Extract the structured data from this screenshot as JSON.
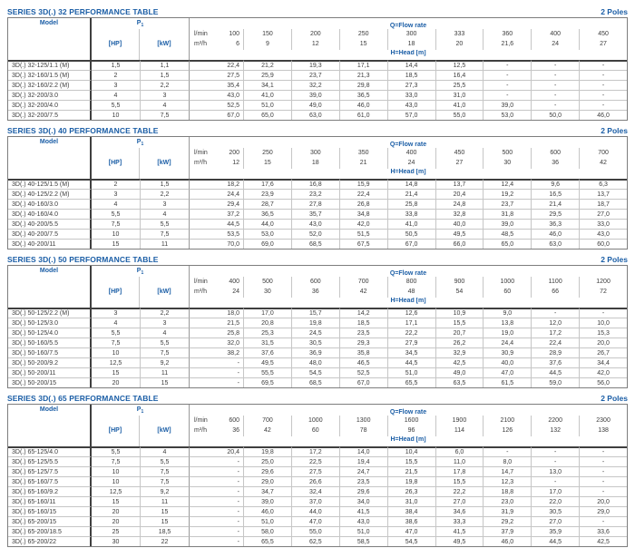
{
  "accent_color": "#1b5ea6",
  "text_color": "#3c3c3c",
  "labels": {
    "poles": "2 Poles",
    "model": "Model",
    "power_p": "P",
    "power_sub": "1",
    "hp": "[HP]",
    "kw": "[kW]",
    "lmin": "l/min",
    "m3h": "m³/h",
    "flow": "Q=Flow rate",
    "head": "H=Head [m]"
  },
  "tables": [
    {
      "title": "SERIES 3D(.) 32 PERFORMANCE TABLE",
      "lmin": [
        "100",
        "150",
        "200",
        "250",
        "300",
        "333",
        "360",
        "400",
        "450"
      ],
      "m3h": [
        "6",
        "9",
        "12",
        "15",
        "18",
        "20",
        "21,6",
        "24",
        "27"
      ],
      "rows": [
        {
          "model": "3D(.) 32-125/1.1 (M)",
          "hp": "1,5",
          "kw": "1,1",
          "head": [
            "22,4",
            "21,2",
            "19,3",
            "17,1",
            "14,4",
            "12,5",
            "-",
            "-",
            "-"
          ]
        },
        {
          "model": "3D(.) 32-160/1.5 (M)",
          "hp": "2",
          "kw": "1,5",
          "head": [
            "27,5",
            "25,9",
            "23,7",
            "21,3",
            "18,5",
            "16,4",
            "-",
            "-",
            "-"
          ]
        },
        {
          "model": "3D(.) 32-160/2.2 (M)",
          "hp": "3",
          "kw": "2,2",
          "head": [
            "35,4",
            "34,1",
            "32,2",
            "29,8",
            "27,3",
            "25,5",
            "-",
            "-",
            "-"
          ]
        },
        {
          "model": "3D(.) 32-200/3.0",
          "hp": "4",
          "kw": "3",
          "head": [
            "43,0",
            "41,0",
            "39,0",
            "36,5",
            "33,0",
            "31,0",
            "-",
            "-",
            "-"
          ]
        },
        {
          "model": "3D(.) 32-200/4.0",
          "hp": "5,5",
          "kw": "4",
          "head": [
            "52,5",
            "51,0",
            "49,0",
            "46,0",
            "43,0",
            "41,0",
            "39,0",
            "-",
            "-"
          ]
        },
        {
          "model": "3D(.) 32-200/7.5",
          "hp": "10",
          "kw": "7,5",
          "head": [
            "67,0",
            "65,0",
            "63,0",
            "61,0",
            "57,0",
            "55,0",
            "53,0",
            "50,0",
            "46,0"
          ]
        }
      ]
    },
    {
      "title": "SERIES 3D(.) 40 PERFORMANCE TABLE",
      "lmin": [
        "200",
        "250",
        "300",
        "350",
        "400",
        "450",
        "500",
        "600",
        "700"
      ],
      "m3h": [
        "12",
        "15",
        "18",
        "21",
        "24",
        "27",
        "30",
        "36",
        "42"
      ],
      "rows": [
        {
          "model": "3D(.) 40-125/1.5 (M)",
          "hp": "2",
          "kw": "1,5",
          "head": [
            "18,2",
            "17,6",
            "16,8",
            "15,9",
            "14,8",
            "13,7",
            "12,4",
            "9,6",
            "6,3"
          ]
        },
        {
          "model": "3D(.) 40-125/2.2 (M)",
          "hp": "3",
          "kw": "2,2",
          "head": [
            "24,4",
            "23,9",
            "23,2",
            "22,4",
            "21,4",
            "20,4",
            "19,2",
            "16,5",
            "13,7"
          ]
        },
        {
          "model": "3D(.) 40-160/3.0",
          "hp": "4",
          "kw": "3",
          "head": [
            "29,4",
            "28,7",
            "27,8",
            "26,8",
            "25,8",
            "24,8",
            "23,7",
            "21,4",
            "18,7"
          ]
        },
        {
          "model": "3D(.) 40-160/4.0",
          "hp": "5,5",
          "kw": "4",
          "head": [
            "37,2",
            "36,5",
            "35,7",
            "34,8",
            "33,8",
            "32,8",
            "31,8",
            "29,5",
            "27,0"
          ]
        },
        {
          "model": "3D(.) 40-200/5.5",
          "hp": "7,5",
          "kw": "5,5",
          "head": [
            "44,5",
            "44,0",
            "43,0",
            "42,0",
            "41,0",
            "40,0",
            "39,0",
            "36,3",
            "33,0"
          ]
        },
        {
          "model": "3D(.) 40-200/7.5",
          "hp": "10",
          "kw": "7,5",
          "head": [
            "53,5",
            "53,0",
            "52,0",
            "51,5",
            "50,5",
            "49,5",
            "48,5",
            "46,0",
            "43,0"
          ]
        },
        {
          "model": "3D(.) 40-200/11",
          "hp": "15",
          "kw": "11",
          "head": [
            "70,0",
            "69,0",
            "68,5",
            "67,5",
            "67,0",
            "66,0",
            "65,0",
            "63,0",
            "60,0"
          ]
        }
      ]
    },
    {
      "title": "SERIES 3D(.) 50 PERFORMANCE TABLE",
      "lmin": [
        "400",
        "500",
        "600",
        "700",
        "800",
        "900",
        "1000",
        "1100",
        "1200"
      ],
      "m3h": [
        "24",
        "30",
        "36",
        "42",
        "48",
        "54",
        "60",
        "66",
        "72"
      ],
      "rows": [
        {
          "model": "3D(.) 50-125/2.2 (M)",
          "hp": "3",
          "kw": "2,2",
          "head": [
            "18,0",
            "17,0",
            "15,7",
            "14,2",
            "12,6",
            "10,9",
            "9,0",
            "-",
            "-"
          ]
        },
        {
          "model": "3D(.) 50-125/3.0",
          "hp": "4",
          "kw": "3",
          "head": [
            "21,5",
            "20,8",
            "19,8",
            "18,5",
            "17,1",
            "15,5",
            "13,8",
            "12,0",
            "10,0"
          ]
        },
        {
          "model": "3D(.) 50-125/4.0",
          "hp": "5,5",
          "kw": "4",
          "head": [
            "25,8",
            "25,3",
            "24,5",
            "23,5",
            "22,2",
            "20,7",
            "19,0",
            "17,2",
            "15,3"
          ]
        },
        {
          "model": "3D(.) 50-160/5.5",
          "hp": "7,5",
          "kw": "5,5",
          "head": [
            "32,0",
            "31,5",
            "30,5",
            "29,3",
            "27,9",
            "26,2",
            "24,4",
            "22,4",
            "20,0"
          ]
        },
        {
          "model": "3D(.) 50-160/7.5",
          "hp": "10",
          "kw": "7,5",
          "head": [
            "38,2",
            "37,6",
            "36,9",
            "35,8",
            "34,5",
            "32,9",
            "30,9",
            "28,9",
            "26,7"
          ]
        },
        {
          "model": "3D(.) 50-200/9.2",
          "hp": "12,5",
          "kw": "9,2",
          "head": [
            "-",
            "49,5",
            "48,0",
            "46,5",
            "44,5",
            "42,5",
            "40,0",
            "37,6",
            "34,4"
          ]
        },
        {
          "model": "3D(.) 50-200/11",
          "hp": "15",
          "kw": "11",
          "head": [
            "-",
            "55,5",
            "54,5",
            "52,5",
            "51,0",
            "49,0",
            "47,0",
            "44,5",
            "42,0"
          ]
        },
        {
          "model": "3D(.) 50-200/15",
          "hp": "20",
          "kw": "15",
          "head": [
            "-",
            "69,5",
            "68,5",
            "67,0",
            "65,5",
            "63,5",
            "61,5",
            "59,0",
            "56,0"
          ]
        }
      ]
    },
    {
      "title": "SERIES 3D(.) 65 PERFORMANCE TABLE",
      "lmin": [
        "600",
        "700",
        "1000",
        "1300",
        "1600",
        "1900",
        "2100",
        "2200",
        "2300"
      ],
      "m3h": [
        "36",
        "42",
        "60",
        "78",
        "96",
        "114",
        "126",
        "132",
        "138"
      ],
      "rows": [
        {
          "model": "3D(.) 65-125/4.0",
          "hp": "5,5",
          "kw": "4",
          "head": [
            "20,4",
            "19,8",
            "17,2",
            "14,0",
            "10,4",
            "6,0",
            "-",
            "-",
            "-"
          ]
        },
        {
          "model": "3D(.) 65-125/5.5",
          "hp": "7,5",
          "kw": "5,5",
          "head": [
            "-",
            "25,0",
            "22,5",
            "19,4",
            "15,5",
            "11,0",
            "8,0",
            "-",
            "-"
          ]
        },
        {
          "model": "3D(.) 65-125/7.5",
          "hp": "10",
          "kw": "7,5",
          "head": [
            "-",
            "29,6",
            "27,5",
            "24,7",
            "21,5",
            "17,8",
            "14,7",
            "13,0",
            "-"
          ]
        },
        {
          "model": "3D(.) 65-160/7.5",
          "hp": "10",
          "kw": "7,5",
          "head": [
            "-",
            "29,0",
            "26,6",
            "23,5",
            "19,8",
            "15,5",
            "12,3",
            "-",
            "-"
          ]
        },
        {
          "model": "3D(.) 65-160/9.2",
          "hp": "12,5",
          "kw": "9,2",
          "head": [
            "-",
            "34,7",
            "32,4",
            "29,6",
            "26,3",
            "22,2",
            "18,8",
            "17,0",
            "-"
          ]
        },
        {
          "model": "3D(.) 65-160/11",
          "hp": "15",
          "kw": "11",
          "head": [
            "-",
            "39,0",
            "37,0",
            "34,0",
            "31,0",
            "27,0",
            "23,0",
            "22,0",
            "20,0"
          ]
        },
        {
          "model": "3D(.) 65-160/15",
          "hp": "20",
          "kw": "15",
          "head": [
            "-",
            "46,0",
            "44,0",
            "41,5",
            "38,4",
            "34,6",
            "31,9",
            "30,5",
            "29,0"
          ]
        },
        {
          "model": "3D(.) 65-200/15",
          "hp": "20",
          "kw": "15",
          "head": [
            "-",
            "51,0",
            "47,0",
            "43,0",
            "38,6",
            "33,3",
            "29,2",
            "27,0",
            "-"
          ]
        },
        {
          "model": "3D(.) 65-200/18.5",
          "hp": "25",
          "kw": "18,5",
          "head": [
            "-",
            "58,0",
            "55,0",
            "51,0",
            "47,0",
            "41,5",
            "37,9",
            "35,9",
            "33,6"
          ]
        },
        {
          "model": "3D(.) 65-200/22",
          "hp": "30",
          "kw": "22",
          "head": [
            "-",
            "65,5",
            "62,5",
            "58,5",
            "54,5",
            "49,5",
            "46,0",
            "44,5",
            "42,5"
          ]
        }
      ]
    }
  ]
}
